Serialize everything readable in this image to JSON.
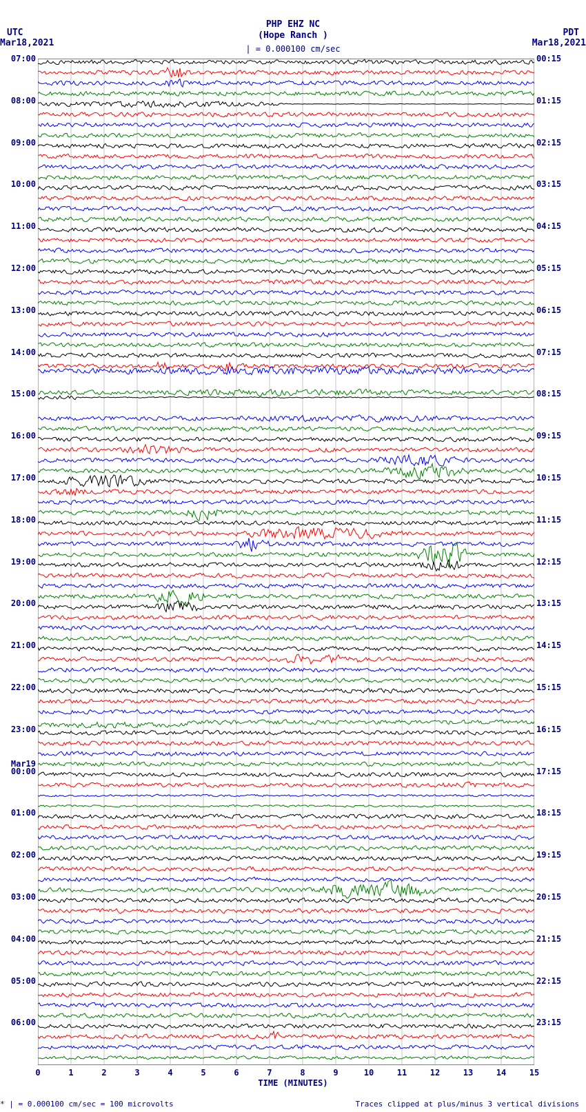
{
  "header": {
    "title": "PHP EHZ NC",
    "subtitle": "(Hope Ranch )",
    "scale_marker": "| = 0.000100 cm/sec",
    "tz_left": "UTC",
    "date_left": "Mar18,2021",
    "tz_right": "PDT",
    "date_right": "Mar18,2021"
  },
  "axes": {
    "xlabel": "TIME (MINUTES)",
    "x_ticks": [
      0,
      1,
      2,
      3,
      4,
      5,
      6,
      7,
      8,
      9,
      10,
      11,
      12,
      13,
      14,
      15
    ],
    "x_range": [
      0,
      15
    ],
    "y_left_labels": [
      {
        "label": "07:00",
        "row": 0
      },
      {
        "label": "08:00",
        "row": 4
      },
      {
        "label": "09:00",
        "row": 8
      },
      {
        "label": "10:00",
        "row": 12
      },
      {
        "label": "11:00",
        "row": 16
      },
      {
        "label": "12:00",
        "row": 20
      },
      {
        "label": "13:00",
        "row": 24
      },
      {
        "label": "14:00",
        "row": 28
      },
      {
        "label": "15:00",
        "row": 32
      },
      {
        "label": "16:00",
        "row": 36
      },
      {
        "label": "17:00",
        "row": 40
      },
      {
        "label": "18:00",
        "row": 44
      },
      {
        "label": "19:00",
        "row": 48
      },
      {
        "label": "20:00",
        "row": 52
      },
      {
        "label": "21:00",
        "row": 56
      },
      {
        "label": "22:00",
        "row": 60
      },
      {
        "label": "23:00",
        "row": 64
      },
      {
        "label": "Mar19",
        "row": 67.3
      },
      {
        "label": "00:00",
        "row": 68
      },
      {
        "label": "01:00",
        "row": 72
      },
      {
        "label": "02:00",
        "row": 76
      },
      {
        "label": "03:00",
        "row": 80
      },
      {
        "label": "04:00",
        "row": 84
      },
      {
        "label": "05:00",
        "row": 88
      },
      {
        "label": "06:00",
        "row": 92
      }
    ],
    "y_right_labels": [
      {
        "label": "00:15",
        "row": 0
      },
      {
        "label": "01:15",
        "row": 4
      },
      {
        "label": "02:15",
        "row": 8
      },
      {
        "label": "03:15",
        "row": 12
      },
      {
        "label": "04:15",
        "row": 16
      },
      {
        "label": "05:15",
        "row": 20
      },
      {
        "label": "06:15",
        "row": 24
      },
      {
        "label": "07:15",
        "row": 28
      },
      {
        "label": "08:15",
        "row": 32
      },
      {
        "label": "09:15",
        "row": 36
      },
      {
        "label": "10:15",
        "row": 40
      },
      {
        "label": "11:15",
        "row": 44
      },
      {
        "label": "12:15",
        "row": 48
      },
      {
        "label": "13:15",
        "row": 52
      },
      {
        "label": "14:15",
        "row": 56
      },
      {
        "label": "15:15",
        "row": 60
      },
      {
        "label": "16:15",
        "row": 64
      },
      {
        "label": "17:15",
        "row": 68
      },
      {
        "label": "18:15",
        "row": 72
      },
      {
        "label": "19:15",
        "row": 76
      },
      {
        "label": "20:15",
        "row": 80
      },
      {
        "label": "21:15",
        "row": 84
      },
      {
        "label": "22:15",
        "row": 88
      },
      {
        "label": "23:15",
        "row": 92
      }
    ]
  },
  "plot": {
    "background": "#ffffff",
    "grid_color": "#a0a0a0",
    "major_grid_color": "#606060",
    "n_rows": 96,
    "row_spacing": 15.2,
    "trace_colors": [
      "#000000",
      "#ff0000",
      "#0000ff",
      "#008000"
    ],
    "noise_amplitude": 4,
    "events": [
      {
        "row": 1,
        "start": 3.8,
        "end": 4.5,
        "amp": 15
      },
      {
        "row": 2,
        "start": 3.8,
        "end": 4.5,
        "amp": 10
      },
      {
        "row": 4,
        "start": 0,
        "end": 7.5,
        "amp": 6,
        "then_flat": true
      },
      {
        "row": 29,
        "start": 3.5,
        "end": 4.0,
        "amp": 10
      },
      {
        "row": 29,
        "start": 5.5,
        "end": 6.0,
        "amp": 10
      },
      {
        "row": 30,
        "start": 0,
        "end": 15,
        "amp": 8,
        "baseline_shift": -8
      },
      {
        "row": 31,
        "start": 0,
        "end": 15,
        "amp": 6,
        "baseline_shift": 8
      },
      {
        "row": 32,
        "start": 0,
        "end": 1.2,
        "amp": 3,
        "then_baseline": true
      },
      {
        "row": 33,
        "start": 0,
        "end": 0.5,
        "amp": 2,
        "gap": true
      },
      {
        "row": 34,
        "start": 3.5,
        "end": 15,
        "amp": 6
      },
      {
        "row": 37,
        "start": 2.5,
        "end": 4.5,
        "amp": 10
      },
      {
        "row": 38,
        "start": 10,
        "end": 13,
        "amp": 12
      },
      {
        "row": 39,
        "start": 10.5,
        "end": 13,
        "amp": 15
      },
      {
        "row": 40,
        "start": 0.5,
        "end": 3.5,
        "amp": 12
      },
      {
        "row": 41,
        "start": 0.5,
        "end": 1.5,
        "amp": 10
      },
      {
        "row": 43,
        "start": 4.5,
        "end": 5.5,
        "amp": 14
      },
      {
        "row": 45,
        "start": 6,
        "end": 11,
        "amp": 12
      },
      {
        "row": 46,
        "start": 6,
        "end": 7,
        "amp": 14
      },
      {
        "row": 47,
        "start": 11.5,
        "end": 13,
        "amp": 25
      },
      {
        "row": 48,
        "start": 11.5,
        "end": 13,
        "amp": 12
      },
      {
        "row": 51,
        "start": 3.5,
        "end": 5,
        "amp": 20
      },
      {
        "row": 52,
        "start": 3.5,
        "end": 5,
        "amp": 12
      },
      {
        "row": 57,
        "start": 7,
        "end": 10,
        "amp": 10
      },
      {
        "row": 63,
        "start": 0,
        "end": 4.5,
        "amp": 6,
        "baseline_shift": 4
      },
      {
        "row": 69,
        "start": 11,
        "end": 15,
        "amp": 5,
        "decay": true
      },
      {
        "row": 70,
        "start": 0,
        "end": 15,
        "amp": 3,
        "quiet": true
      },
      {
        "row": 71,
        "start": 0,
        "end": 15,
        "amp": 2,
        "quiet": true
      },
      {
        "row": 79,
        "start": 8.5,
        "end": 12,
        "amp": 18
      },
      {
        "row": 93,
        "start": 7,
        "end": 7.3,
        "amp": 12
      },
      {
        "row": 95,
        "start": 0,
        "end": 15,
        "amp": 3,
        "quiet": true
      }
    ]
  },
  "footer": {
    "left": "* | = 0.000100 cm/sec =    100 microvolts",
    "right": "Traces clipped at plus/minus 3 vertical divisions"
  }
}
